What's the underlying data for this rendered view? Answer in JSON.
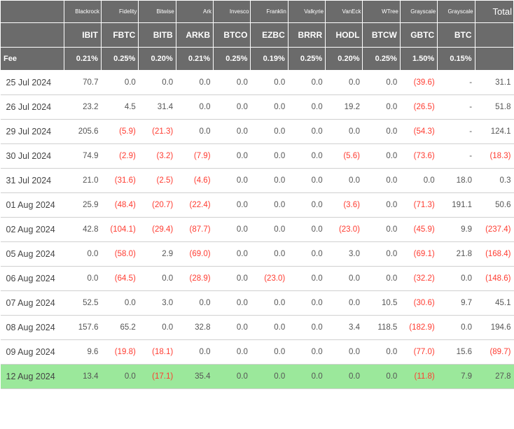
{
  "columns": {
    "issuers": [
      "Blackrock",
      "Fidelity",
      "Bitwise",
      "Ark",
      "Invesco",
      "Franklin",
      "Valkyrie",
      "VanEck",
      "WTree",
      "Grayscale",
      "Grayscale"
    ],
    "tickers": [
      "IBIT",
      "FBTC",
      "BITB",
      "ARKB",
      "BTCO",
      "EZBC",
      "BRRR",
      "HODL",
      "BTCW",
      "GBTC",
      "BTC"
    ],
    "fees": [
      "0.21%",
      "0.25%",
      "0.20%",
      "0.21%",
      "0.25%",
      "0.19%",
      "0.25%",
      "0.20%",
      "0.25%",
      "1.50%",
      "0.15%"
    ]
  },
  "feeLabel": "Fee",
  "totalLabel": "Total",
  "rows": [
    {
      "date": "25 Jul 2024",
      "v": [
        70.7,
        0.0,
        0.0,
        0.0,
        0.0,
        0.0,
        0.0,
        0.0,
        0.0,
        -39.6,
        null
      ],
      "total": 31.1
    },
    {
      "date": "26 Jul 2024",
      "v": [
        23.2,
        4.5,
        31.4,
        0.0,
        0.0,
        0.0,
        0.0,
        19.2,
        0.0,
        -26.5,
        null
      ],
      "total": 51.8
    },
    {
      "date": "29 Jul 2024",
      "v": [
        205.6,
        -5.9,
        -21.3,
        0.0,
        0.0,
        0.0,
        0.0,
        0.0,
        0.0,
        -54.3,
        null
      ],
      "total": 124.1
    },
    {
      "date": "30 Jul 2024",
      "v": [
        74.9,
        -2.9,
        -3.2,
        -7.9,
        0.0,
        0.0,
        0.0,
        -5.6,
        0.0,
        -73.6,
        null
      ],
      "total": -18.3
    },
    {
      "date": "31 Jul 2024",
      "v": [
        21.0,
        -31.6,
        -2.5,
        -4.6,
        0.0,
        0.0,
        0.0,
        0.0,
        0.0,
        0.0,
        18.0
      ],
      "total": 0.3
    },
    {
      "date": "01 Aug 2024",
      "v": [
        25.9,
        -48.4,
        -20.7,
        -22.4,
        0.0,
        0.0,
        0.0,
        -3.6,
        0.0,
        -71.3,
        191.1
      ],
      "total": 50.6
    },
    {
      "date": "02 Aug 2024",
      "v": [
        42.8,
        -104.1,
        -29.4,
        -87.7,
        0.0,
        0.0,
        0.0,
        -23.0,
        0.0,
        -45.9,
        9.9
      ],
      "total": -237.4
    },
    {
      "date": "05 Aug 2024",
      "v": [
        0.0,
        -58.0,
        2.9,
        -69.0,
        0.0,
        0.0,
        0.0,
        3.0,
        0.0,
        -69.1,
        21.8
      ],
      "total": -168.4
    },
    {
      "date": "06 Aug 2024",
      "v": [
        0.0,
        -64.5,
        0.0,
        -28.9,
        0.0,
        -23.0,
        0.0,
        0.0,
        0.0,
        -32.2,
        0.0
      ],
      "total": -148.6
    },
    {
      "date": "07 Aug 2024",
      "v": [
        52.5,
        0.0,
        3.0,
        0.0,
        0.0,
        0.0,
        0.0,
        0.0,
        10.5,
        -30.6,
        9.7
      ],
      "total": 45.1
    },
    {
      "date": "08 Aug 2024",
      "v": [
        157.6,
        65.2,
        0.0,
        32.8,
        0.0,
        0.0,
        0.0,
        3.4,
        118.5,
        -182.9,
        0.0
      ],
      "total": 194.6
    },
    {
      "date": "09 Aug 2024",
      "v": [
        9.6,
        -19.8,
        -18.1,
        0.0,
        0.0,
        0.0,
        0.0,
        0.0,
        0.0,
        -77.0,
        15.6
      ],
      "total": -89.7
    },
    {
      "date": "12 Aug 2024",
      "v": [
        13.4,
        0.0,
        -17.1,
        35.4,
        0.0,
        0.0,
        0.0,
        0.0,
        0.0,
        -11.8,
        7.9
      ],
      "total": 27.8,
      "highlight": true
    }
  ],
  "colors": {
    "header_bg": "#6b6b6b",
    "header_fg": "#ffffff",
    "body_fg": "#555555",
    "negative": "#ff3b30",
    "row_border": "#d0d0d0",
    "highlight_bg": "#9be89b"
  }
}
